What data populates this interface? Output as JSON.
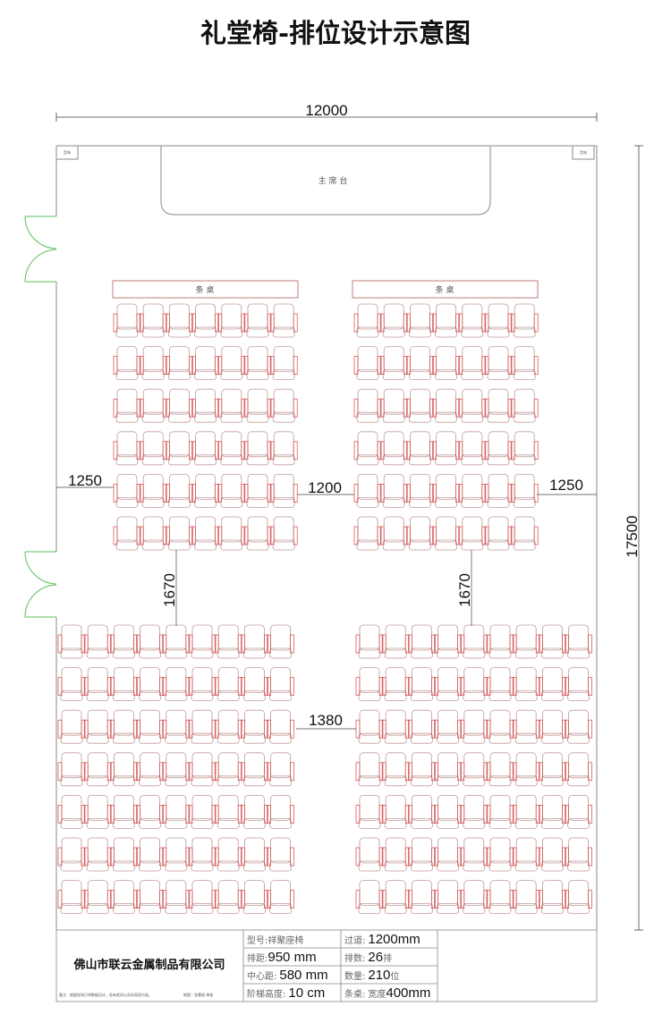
{
  "title": "礼堂椅-排位设计示意图",
  "plan": {
    "stage_label": "主 席 台",
    "table_label": "条 桌",
    "corner_label": "音响",
    "dimensions": {
      "total_width": "12000",
      "total_length": "17500",
      "side_aisle_left": "1250",
      "center_aisle_front": "1200",
      "side_aisle_right": "1250",
      "cross_aisle_left": "1670",
      "cross_aisle_right": "1670",
      "center_aisle_rear": "1380"
    },
    "blocks": [
      {
        "name": "front-left",
        "rows": 6,
        "cols": 7
      },
      {
        "name": "front-right",
        "rows": 6,
        "cols": 7
      },
      {
        "name": "rear-left",
        "rows": 7,
        "cols": 9
      },
      {
        "name": "rear-right",
        "rows": 7,
        "cols": 9
      }
    ],
    "colors": {
      "wall": "#888888",
      "chair_outline": "#c49a9a",
      "chair_arm": "#d04848",
      "door": "#5cbf5c",
      "table": "#b06060"
    }
  },
  "title_block": {
    "company": "佛山市联云金属制品有限公司",
    "note": "备注：根据现场已知数据设计，若有差异以实际现场为准。",
    "drawer": "制图：张慧丽 审核",
    "model_label": "型号:",
    "model_value": "祥聚座椅",
    "row_pitch_label": "排距:",
    "row_pitch_value": "950 mm",
    "center_distance_label": "中心距:",
    "center_distance_value": "580 mm",
    "step_height_label": "阶梯高度:",
    "step_height_value": "10 cm",
    "aisle_label": "过道:",
    "aisle_value": "1200mm",
    "rows_label": "排数:",
    "rows_value": "26",
    "rows_unit": "排",
    "quantity_label": "数量:",
    "quantity_value": "210",
    "quantity_unit": "位",
    "table_label": "条桌:",
    "table_value_prefix": "宽度",
    "table_value": "400mm"
  }
}
